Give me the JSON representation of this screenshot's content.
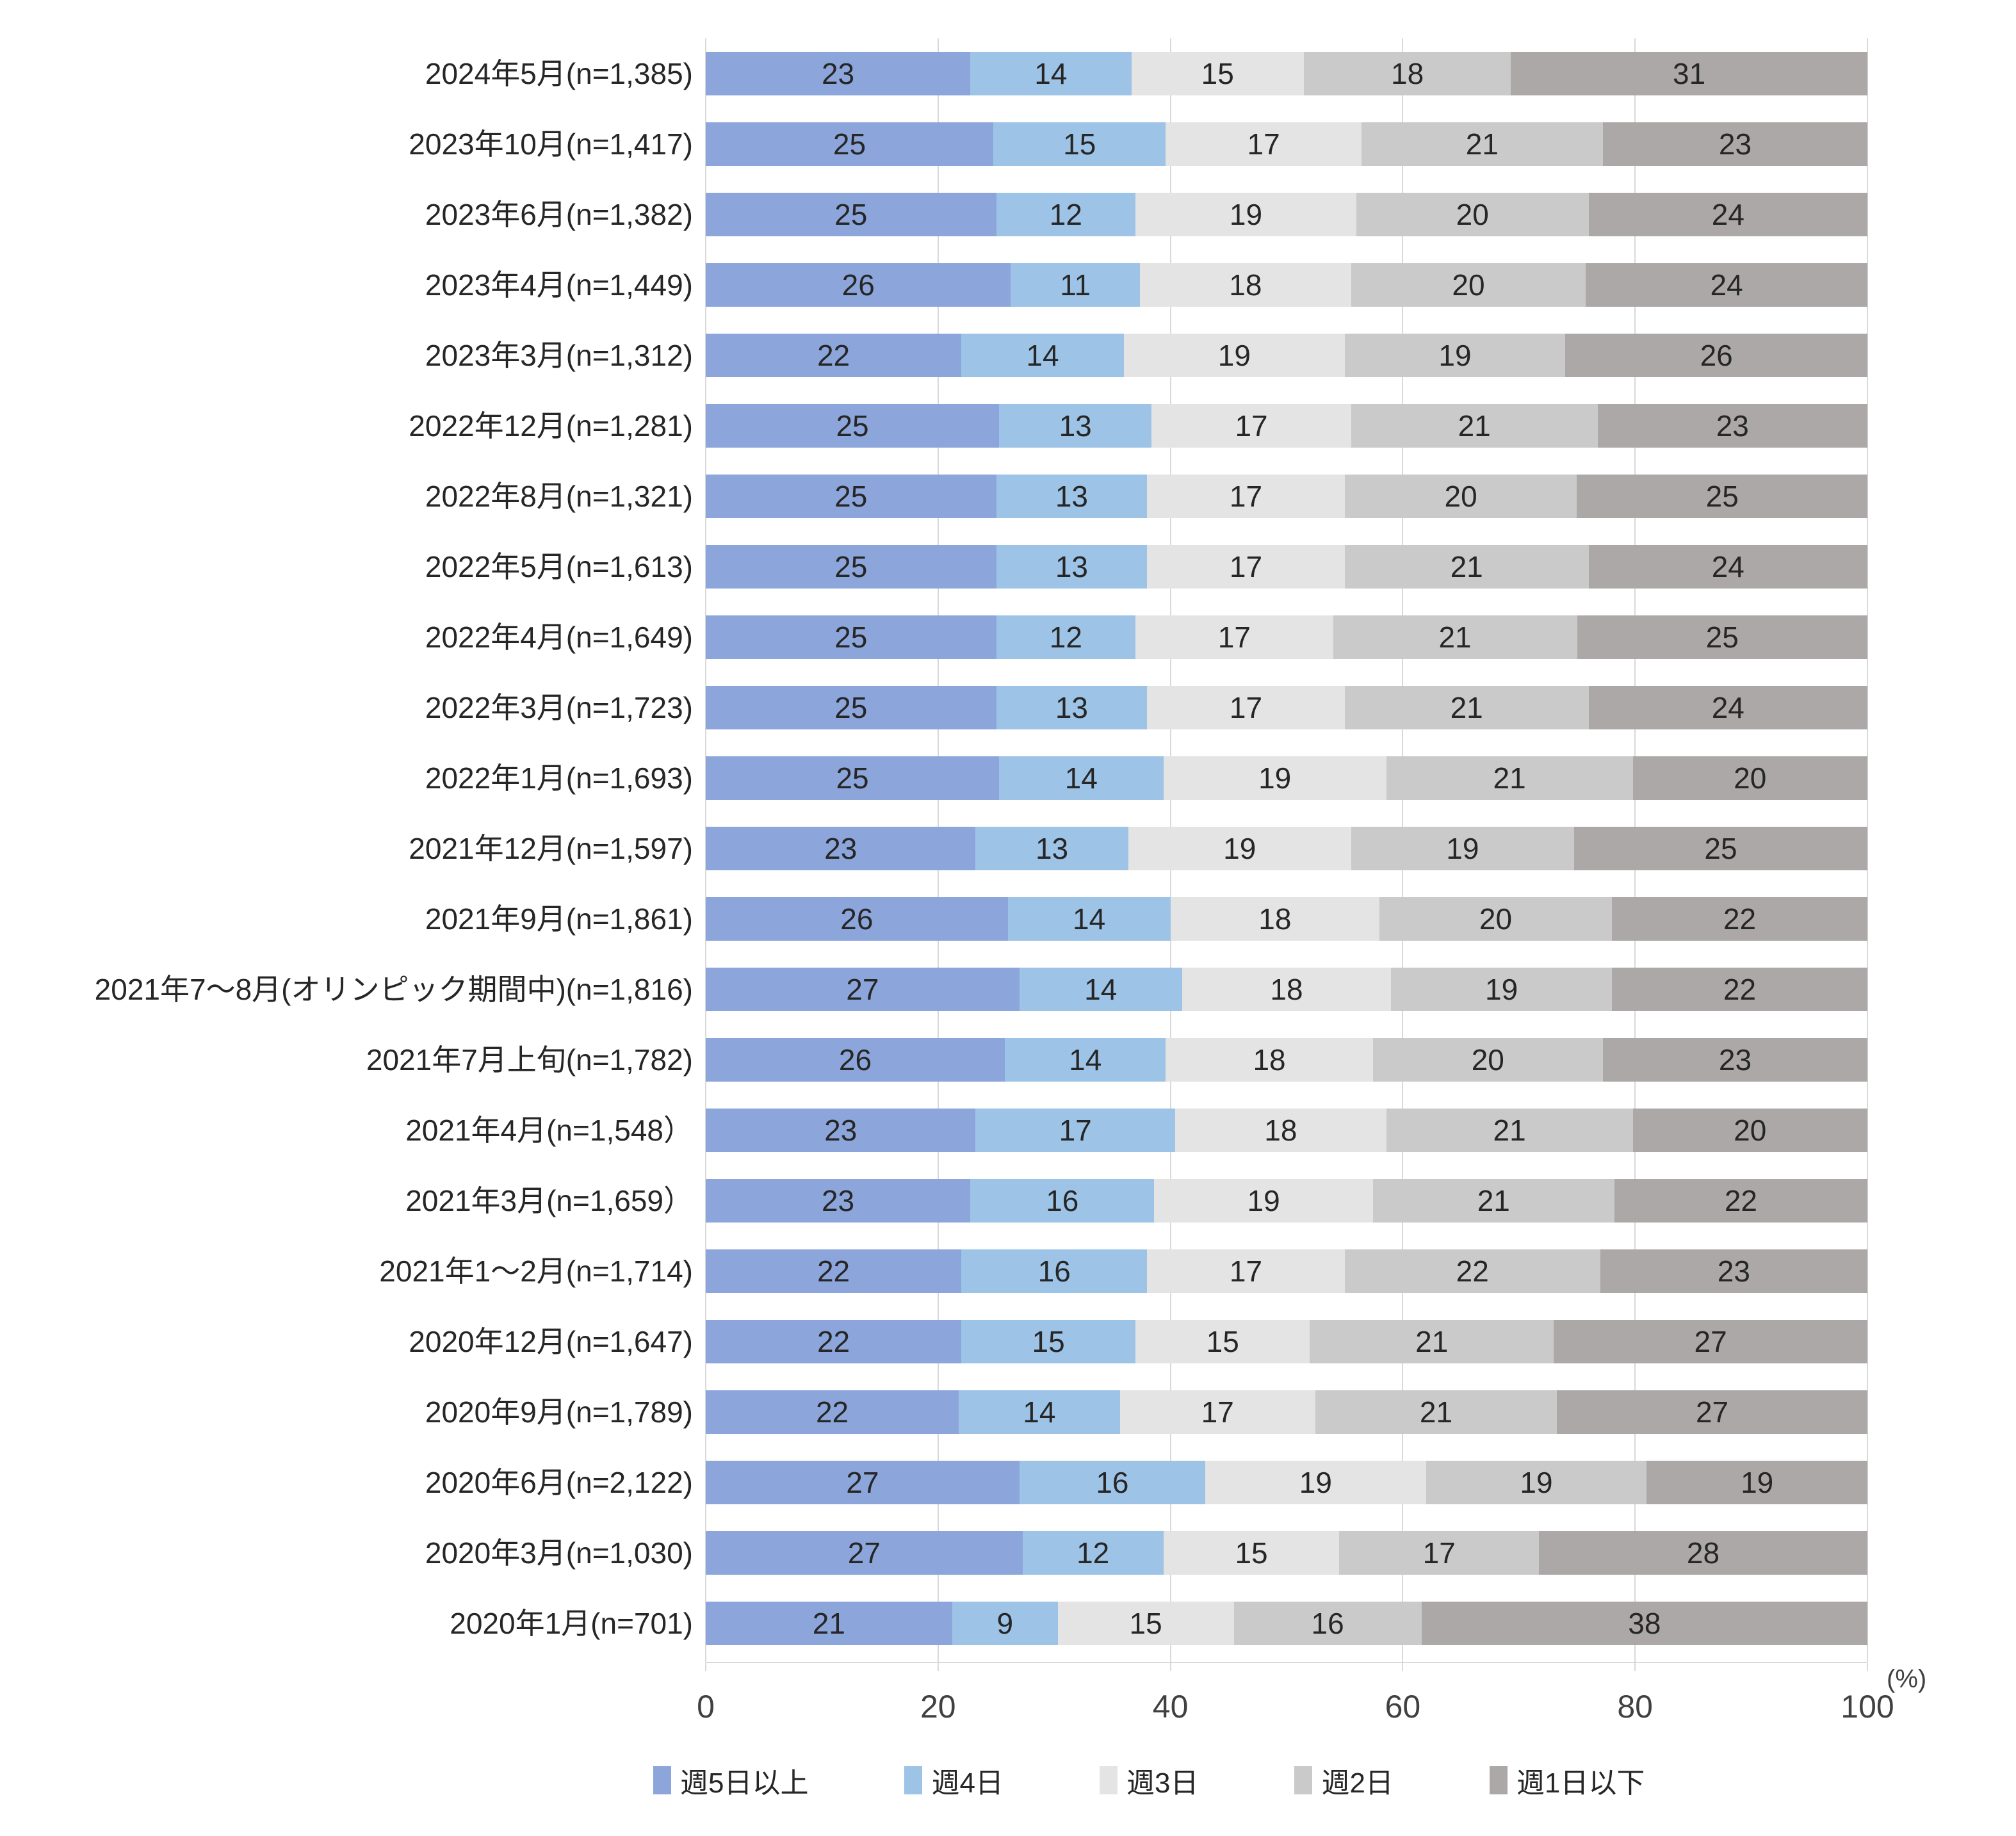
{
  "chart_data": {
    "type": "bar",
    "stacked": true,
    "orientation": "horizontal",
    "title": "",
    "xlabel": "",
    "ylabel": "",
    "unit_label": "(%)",
    "x_axis": {
      "range": [
        0,
        100
      ],
      "ticks": [
        0,
        20,
        40,
        60,
        80,
        100
      ],
      "grid": true
    },
    "legend_position": "bottom",
    "series_colors": [
      "#8CA6DC",
      "#9DC3E6",
      "#E5E4E4",
      "#CBCACA",
      "#ACA8A8"
    ],
    "legend": [
      {
        "label": "週5日以上",
        "color": "#8CA6DC"
      },
      {
        "label": "週4日",
        "color": "#9DC3E6"
      },
      {
        "label": "週3日",
        "color": "#E5E4E4"
      },
      {
        "label": "週2日",
        "color": "#CBCACA"
      },
      {
        "label": "週1日以下",
        "color": "#ACA8A8"
      }
    ],
    "rows": [
      {
        "label": "2024年5月(n=1,385)",
        "values": [
          23,
          14,
          15,
          18,
          31
        ]
      },
      {
        "label": "2023年10月(n=1,417)",
        "values": [
          25,
          15,
          17,
          21,
          23
        ]
      },
      {
        "label": "2023年6月(n=1,382)",
        "values": [
          25,
          12,
          19,
          20,
          24
        ]
      },
      {
        "label": "2023年4月(n=1,449)",
        "values": [
          26,
          11,
          18,
          20,
          24
        ]
      },
      {
        "label": "2023年3月(n=1,312)",
        "values": [
          22,
          14,
          19,
          19,
          26
        ]
      },
      {
        "label": "2022年12月(n=1,281)",
        "values": [
          25,
          13,
          17,
          21,
          23
        ]
      },
      {
        "label": "2022年8月(n=1,321)",
        "values": [
          25,
          13,
          17,
          20,
          25
        ]
      },
      {
        "label": "2022年5月(n=1,613)",
        "values": [
          25,
          13,
          17,
          21,
          24
        ]
      },
      {
        "label": "2022年4月(n=1,649)",
        "values": [
          25,
          12,
          17,
          21,
          25
        ]
      },
      {
        "label": "2022年3月(n=1,723)",
        "values": [
          25,
          13,
          17,
          21,
          24
        ]
      },
      {
        "label": "2022年1月(n=1,693)",
        "values": [
          25,
          14,
          19,
          21,
          20
        ]
      },
      {
        "label": "2021年12月(n=1,597)",
        "values": [
          23,
          13,
          19,
          19,
          25
        ]
      },
      {
        "label": "2021年9月(n=1,861)",
        "values": [
          26,
          14,
          18,
          20,
          22
        ]
      },
      {
        "label": "2021年7～8月(オリンピック期間中)(n=1,816)",
        "values": [
          27,
          14,
          18,
          19,
          22
        ]
      },
      {
        "label": "2021年7月上旬(n=1,782)",
        "values": [
          26,
          14,
          18,
          20,
          23
        ]
      },
      {
        "label": "2021年4月(n=1,548）",
        "values": [
          23,
          17,
          18,
          21,
          20
        ]
      },
      {
        "label": "2021年3月(n=1,659）",
        "values": [
          23,
          16,
          19,
          21,
          22
        ]
      },
      {
        "label": "2021年1～2月(n=1,714)",
        "values": [
          22,
          16,
          17,
          22,
          23
        ]
      },
      {
        "label": "2020年12月(n=1,647)",
        "values": [
          22,
          15,
          15,
          21,
          27
        ]
      },
      {
        "label": "2020年9月(n=1,789)",
        "values": [
          22,
          14,
          17,
          21,
          27
        ]
      },
      {
        "label": "2020年6月(n=2,122)",
        "values": [
          27,
          16,
          19,
          19,
          19
        ]
      },
      {
        "label": "2020年3月(n=1,030)",
        "values": [
          27,
          12,
          15,
          17,
          28
        ]
      },
      {
        "label": "2020年1月(n=701)",
        "values": [
          21,
          9,
          15,
          16,
          38
        ]
      }
    ]
  },
  "colors": {
    "gridline": "#d9d9d9",
    "axis_text": "#404040",
    "label_text": "#262626",
    "background": "#ffffff"
  }
}
